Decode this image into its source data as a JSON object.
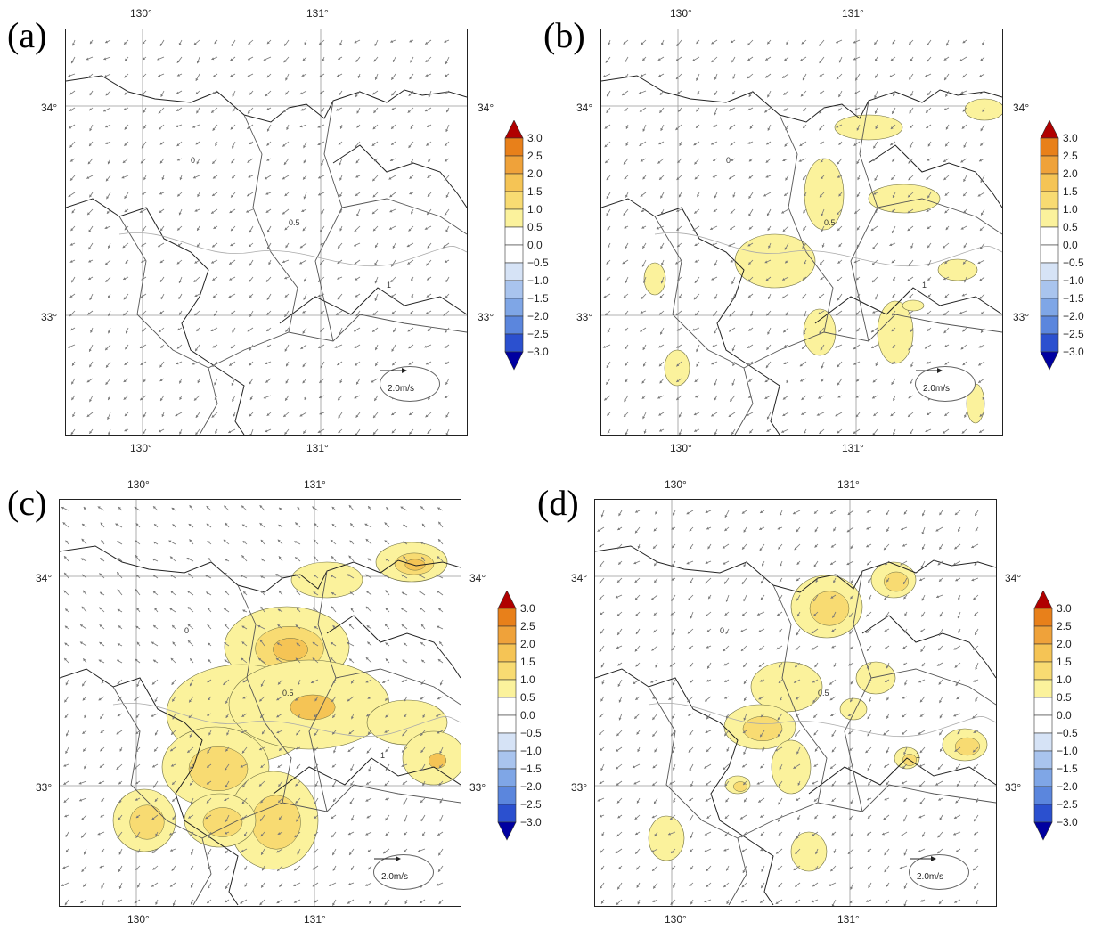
{
  "panels": [
    {
      "label": "(a)",
      "intensity": 0
    },
    {
      "label": "(b)",
      "intensity": 1
    },
    {
      "label": "(c)",
      "intensity": 3
    },
    {
      "label": "(d)",
      "intensity": 2
    }
  ],
  "axes": {
    "lon_ticks": [
      "130°",
      "131°"
    ],
    "lat_ticks": [
      "34°",
      "33°"
    ]
  },
  "colorbar": {
    "labels": [
      "3.0",
      "2.5",
      "2.0",
      "1.5",
      "1.0",
      "0.5",
      "0.0",
      "−0.5",
      "−1.0",
      "−1.5",
      "−2.0",
      "−2.5",
      "−3.0"
    ],
    "colors": [
      "#b00000",
      "#e8801a",
      "#efa23a",
      "#f5c455",
      "#f8db72",
      "#fbf29c",
      "#ffffff",
      "#ffffff",
      "#d6e3f6",
      "#a9c4ee",
      "#7fa6e6",
      "#5b86dd",
      "#2b50cf",
      "#0000a0"
    ]
  },
  "vector_scale": "2.0m/s",
  "contour_labels": [
    "0",
    "0.5",
    "1"
  ]
}
